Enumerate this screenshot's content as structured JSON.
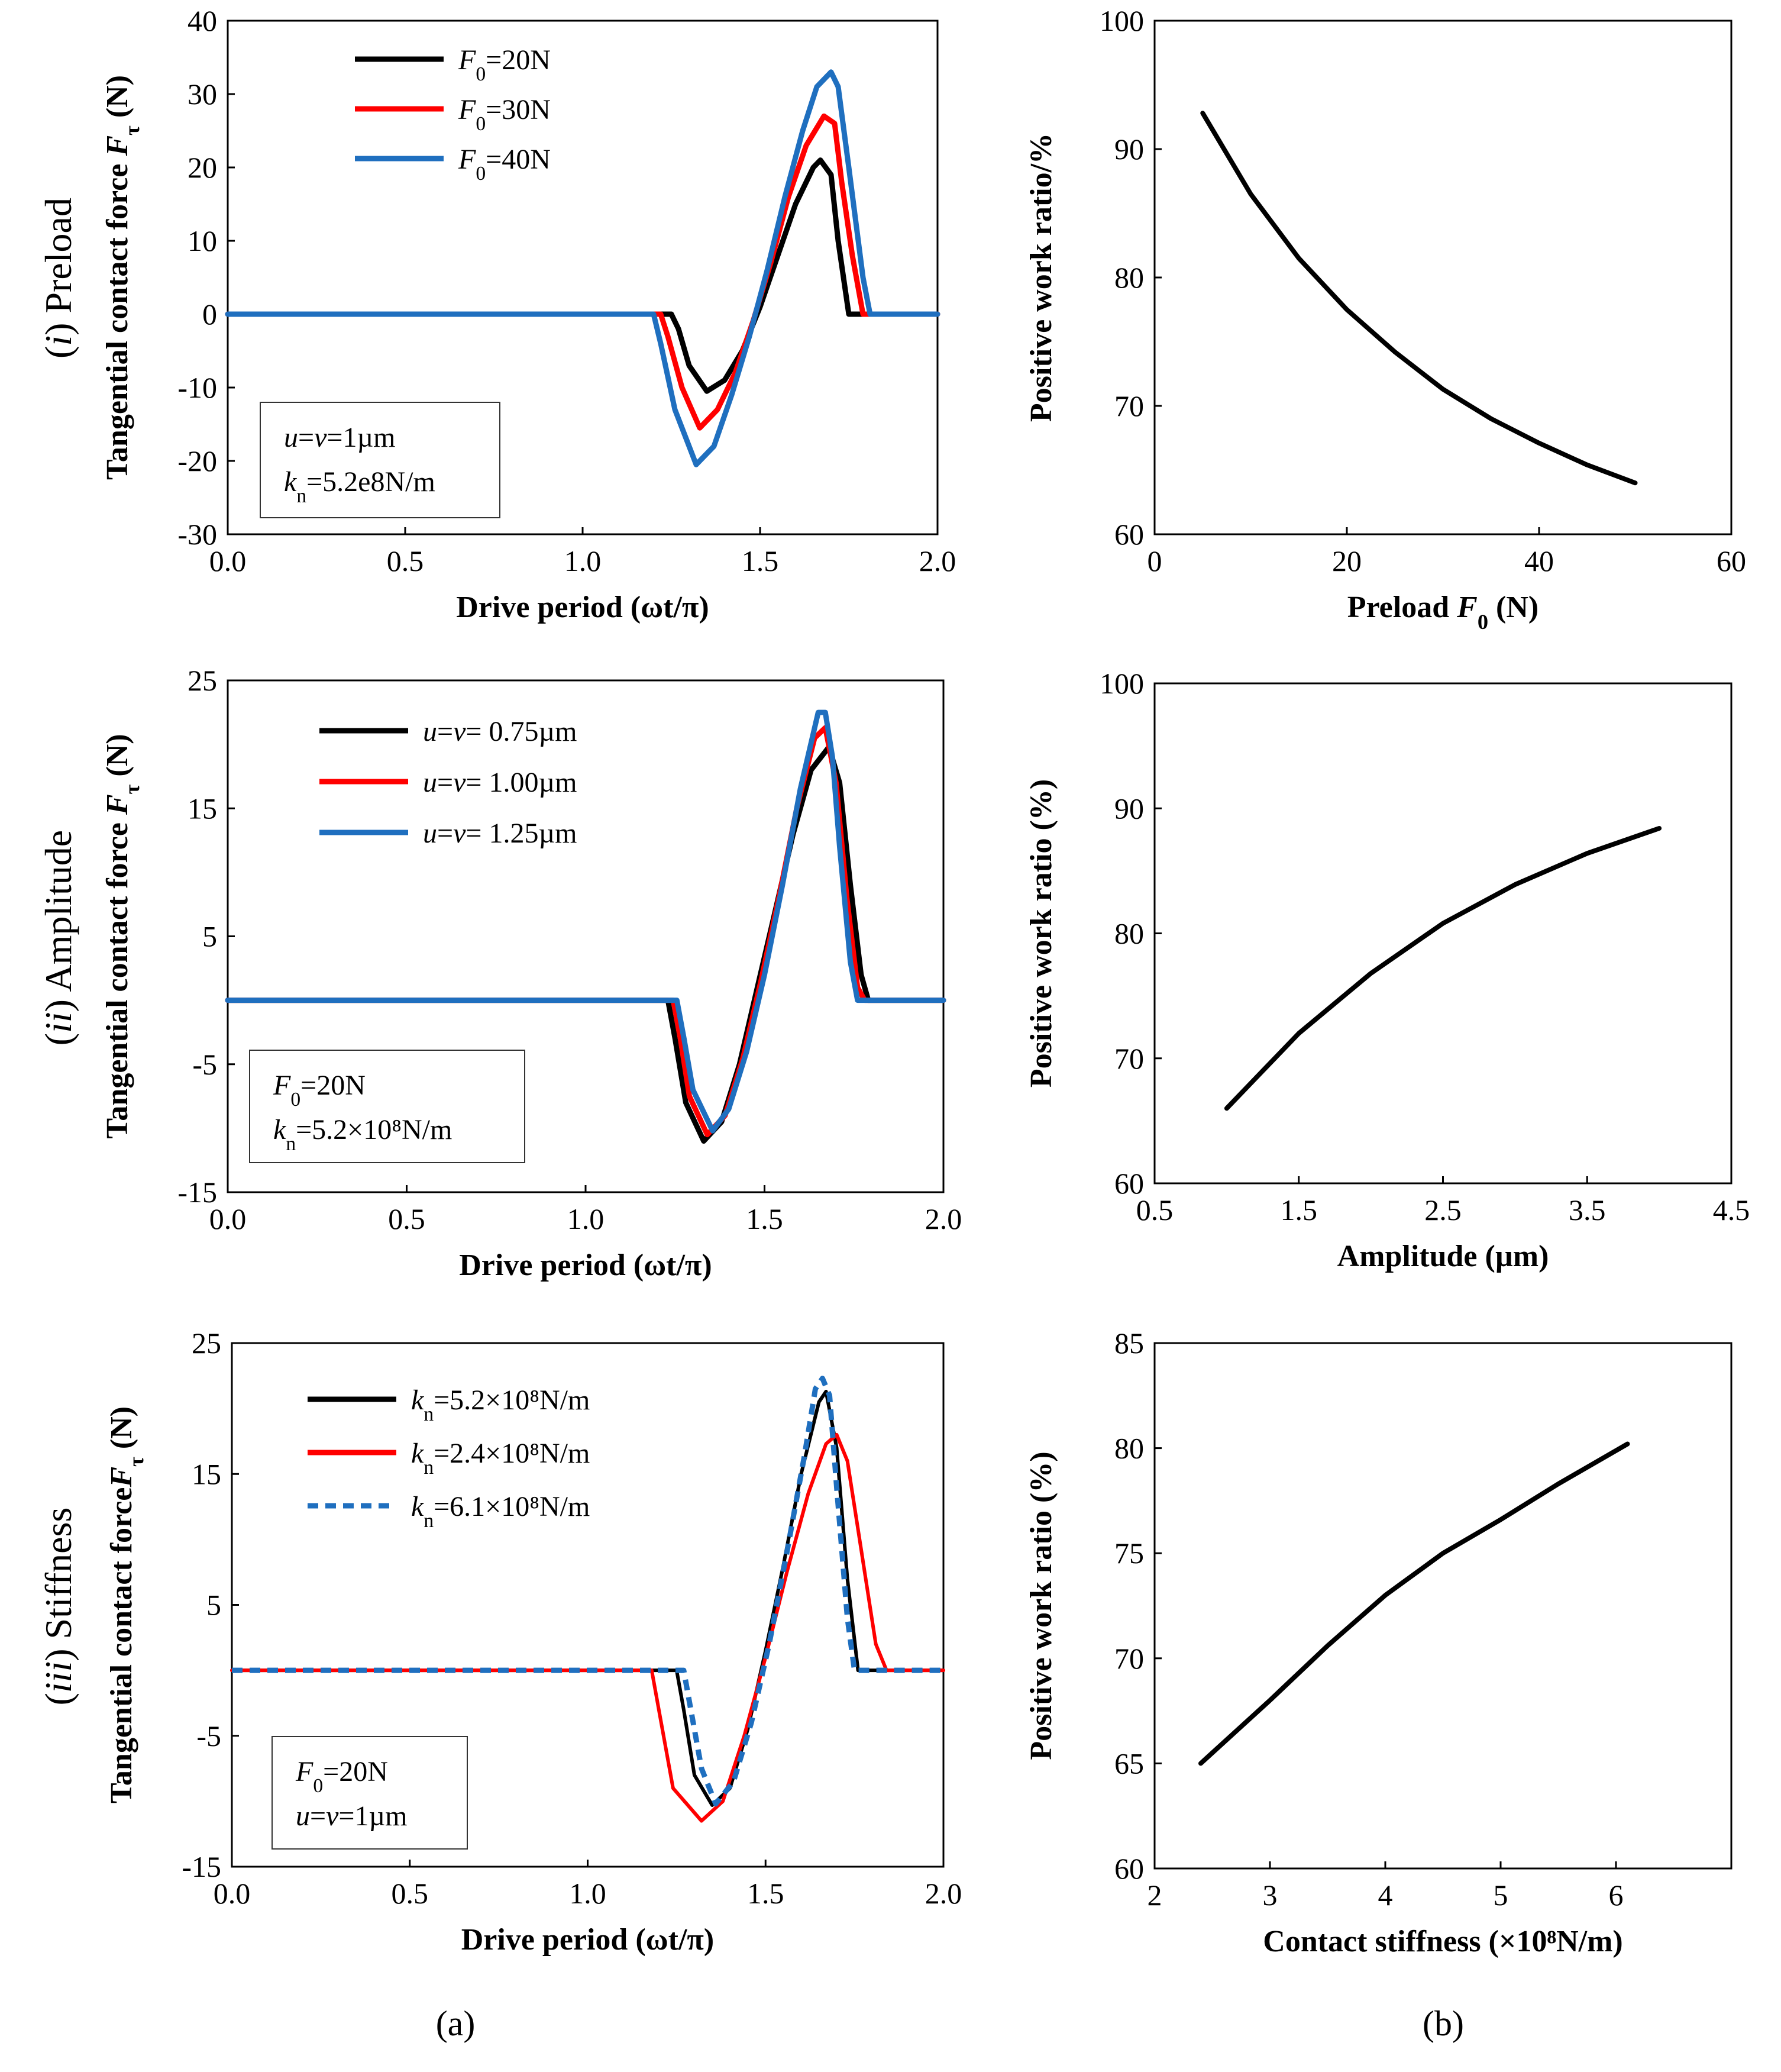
{
  "panel_labels": [
    "(a)",
    "(b)"
  ],
  "row_labels": [
    "(i) Preload",
    "(ii) Amplitude",
    "(iii) Stiffness"
  ],
  "chart_data": [
    {
      "id": "a1",
      "type": "line",
      "xlabel": "Drive period (ωt/π)",
      "ylabel": "Tangential contact force Fτ (N)",
      "row_label": "(i) Preload",
      "xlim": [
        0,
        2
      ],
      "ylim": [
        -30,
        40
      ],
      "xticks": [
        "0.0",
        "0.5",
        "1.0",
        "1.5",
        "2.0"
      ],
      "yticks": [
        "-30",
        "-20",
        "-10",
        "0",
        "10",
        "20",
        "30",
        "40"
      ],
      "legend_position": "top-left",
      "info_box": [
        "u=v=1µm",
        "kn=5.2e8N/m"
      ],
      "series": [
        {
          "name": "F0=20N",
          "color": "#000000",
          "dash": false,
          "x": [
            0,
            1.25,
            1.27,
            1.3,
            1.35,
            1.4,
            1.45,
            1.5,
            1.55,
            1.6,
            1.65,
            1.67,
            1.7,
            1.72,
            1.75,
            1.77,
            2.0
          ],
          "y": [
            0,
            0,
            -2,
            -7,
            -10.5,
            -9,
            -5,
            1,
            8,
            15,
            20,
            21,
            19,
            10,
            0,
            0,
            0
          ]
        },
        {
          "name": "F0=30N",
          "color": "#ff0000",
          "dash": false,
          "x": [
            0,
            1.22,
            1.24,
            1.28,
            1.33,
            1.38,
            1.43,
            1.48,
            1.53,
            1.58,
            1.63,
            1.68,
            1.71,
            1.73,
            1.76,
            1.79,
            2.0
          ],
          "y": [
            0,
            0,
            -3,
            -10,
            -15.5,
            -13,
            -8,
            -1,
            7,
            16,
            23,
            27,
            26,
            18,
            8,
            0,
            0
          ]
        },
        {
          "name": "F0=40N",
          "color": "#1f6fbf",
          "dash": false,
          "x": [
            0,
            1.2,
            1.22,
            1.26,
            1.32,
            1.37,
            1.42,
            1.47,
            1.52,
            1.57,
            1.62,
            1.66,
            1.7,
            1.72,
            1.75,
            1.79,
            1.81,
            2.0
          ],
          "y": [
            0,
            0,
            -4,
            -13,
            -20.5,
            -18,
            -11,
            -3,
            6,
            16,
            25,
            31,
            33,
            31,
            20,
            5,
            0,
            0
          ]
        }
      ]
    },
    {
      "id": "b1",
      "type": "line",
      "xlabel": "Preload F0 (N)",
      "ylabel": "Positive work ratio/%",
      "xlim": [
        0,
        60
      ],
      "ylim": [
        60,
        100
      ],
      "xticks": [
        "0",
        "20",
        "40",
        "60"
      ],
      "yticks": [
        "60",
        "70",
        "80",
        "90",
        "100"
      ],
      "series": [
        {
          "name": "Positive work ratio",
          "color": "#000000",
          "dash": false,
          "x": [
            5,
            10,
            15,
            20,
            25,
            30,
            35,
            40,
            45,
            50
          ],
          "y": [
            92.8,
            86.5,
            81.5,
            77.5,
            74.2,
            71.3,
            69.0,
            67.1,
            65.4,
            64.0
          ]
        }
      ]
    },
    {
      "id": "a2",
      "type": "line",
      "xlabel": "Drive period (ωt/π)",
      "ylabel": "Tangential contact force Fτ (N)",
      "row_label": "(ii) Amplitude",
      "xlim": [
        0,
        2
      ],
      "ylim": [
        -15,
        25
      ],
      "xticks": [
        "0.0",
        "0.5",
        "1.0",
        "1.5",
        "2.0"
      ],
      "yticks": [
        "-15",
        "-5",
        "5",
        "15",
        "25"
      ],
      "legend_position": "top-left",
      "info_box": [
        "F0=20N",
        "kn=5.2×10⁸N/m"
      ],
      "series": [
        {
          "name": "u=v= 0.75µm",
          "color": "#000000",
          "dash": false,
          "x": [
            0,
            1.23,
            1.25,
            1.28,
            1.33,
            1.38,
            1.43,
            1.48,
            1.53,
            1.58,
            1.63,
            1.68,
            1.71,
            1.74,
            1.77,
            1.79,
            2.0
          ],
          "y": [
            0,
            0,
            -3,
            -8,
            -11,
            -9.5,
            -5,
            1,
            7,
            13,
            18,
            19.8,
            17,
            9,
            2,
            0,
            0
          ]
        },
        {
          "name": "u=v= 1.00µm",
          "color": "#ff0000",
          "dash": false,
          "x": [
            0,
            1.245,
            1.265,
            1.29,
            1.34,
            1.39,
            1.44,
            1.49,
            1.54,
            1.59,
            1.64,
            1.67,
            1.7,
            1.73,
            1.76,
            1.78,
            2.0
          ],
          "y": [
            0,
            0,
            -3,
            -7.5,
            -10.5,
            -9,
            -4.5,
            1.5,
            8,
            15,
            20.5,
            21.3,
            17,
            8,
            1,
            0,
            0
          ]
        },
        {
          "name": "u=v= 1.25µm",
          "color": "#1f6fbf",
          "dash": false,
          "x": [
            0,
            1.255,
            1.275,
            1.3,
            1.355,
            1.4,
            1.45,
            1.5,
            1.55,
            1.6,
            1.65,
            1.67,
            1.69,
            1.71,
            1.74,
            1.76,
            2.0
          ],
          "y": [
            0,
            0,
            -3,
            -7,
            -10.2,
            -8.5,
            -4,
            2,
            9,
            16.5,
            22.5,
            22.5,
            19,
            12,
            3,
            0,
            0
          ]
        }
      ]
    },
    {
      "id": "b2",
      "type": "line",
      "xlabel": "Amplitude (µm)",
      "ylabel": "Positive work ratio (%)",
      "xlim": [
        0.5,
        4.5
      ],
      "ylim": [
        60,
        100
      ],
      "xticks": [
        "0.5",
        "1.5",
        "2.5",
        "3.5",
        "4.5"
      ],
      "yticks": [
        "60",
        "70",
        "80",
        "90",
        "100"
      ],
      "series": [
        {
          "name": "Positive work ratio",
          "color": "#000000",
          "dash": false,
          "x": [
            1.0,
            1.25,
            1.5,
            2.0,
            2.5,
            3.0,
            3.5,
            4.0
          ],
          "y": [
            66.0,
            69.0,
            72.0,
            76.8,
            80.8,
            83.9,
            86.4,
            88.4
          ]
        }
      ]
    },
    {
      "id": "a3",
      "type": "line",
      "xlabel": "Drive period (ωt/π)",
      "ylabel": "Tangential contact forceFτ (N)",
      "row_label": "(iii) Stiffness",
      "xlim": [
        0,
        2
      ],
      "ylim": [
        -15,
        25
      ],
      "xticks": [
        "0.0",
        "0.5",
        "1.0",
        "1.5",
        "2.0"
      ],
      "yticks": [
        "-15",
        "-5",
        "5",
        "15",
        "25"
      ],
      "legend_position": "top-left",
      "info_box": [
        "F0=20N",
        "u=v=1µm"
      ],
      "series": [
        {
          "name": "kn=5.2×10⁸N/m",
          "color": "#000000",
          "dash": false,
          "x": [
            0,
            1.25,
            1.27,
            1.3,
            1.35,
            1.4,
            1.45,
            1.5,
            1.55,
            1.6,
            1.65,
            1.67,
            1.7,
            1.73,
            1.76,
            2.0
          ],
          "y": [
            0,
            0,
            -3,
            -8,
            -10.3,
            -9,
            -4.5,
            1.5,
            8,
            15,
            20.5,
            21.3,
            17,
            7,
            0,
            0
          ]
        },
        {
          "name": "kn=2.4×10⁸N/m",
          "color": "#ff0000",
          "dash": false,
          "x": [
            0,
            1.18,
            1.2,
            1.24,
            1.32,
            1.38,
            1.44,
            1.5,
            1.56,
            1.62,
            1.67,
            1.7,
            1.73,
            1.77,
            1.81,
            1.84,
            2.0
          ],
          "y": [
            0,
            0,
            -3,
            -9,
            -11.5,
            -10,
            -5,
            1,
            7.5,
            13.5,
            17.3,
            18,
            16,
            9,
            2,
            0,
            0
          ]
        },
        {
          "name": "kn=6.1×10⁸N/m",
          "color": "#1f6fbf",
          "dash": true,
          "x": [
            0,
            1.27,
            1.29,
            1.32,
            1.36,
            1.41,
            1.46,
            1.51,
            1.56,
            1.61,
            1.64,
            1.66,
            1.68,
            1.7,
            1.73,
            1.75,
            2.0
          ],
          "y": [
            0,
            0,
            -3,
            -7.5,
            -10.2,
            -8.5,
            -4,
            2,
            9,
            16.5,
            21.5,
            22.3,
            21,
            14,
            4,
            0,
            0
          ]
        }
      ]
    },
    {
      "id": "b3",
      "type": "line",
      "xlabel": "Contact stiffness (×10⁸N/m)",
      "ylabel": "Positive work ratio (%)",
      "xlim": [
        2,
        7
      ],
      "ylim": [
        60,
        85
      ],
      "xticks": [
        "2",
        "3",
        "4",
        "5",
        "6"
      ],
      "yticks": [
        "60",
        "65",
        "70",
        "75",
        "80",
        "85"
      ],
      "series": [
        {
          "name": "Positive work ratio",
          "color": "#000000",
          "dash": false,
          "x": [
            2.4,
            3.0,
            3.5,
            4.0,
            4.5,
            5.0,
            5.5,
            6.1
          ],
          "y": [
            65.0,
            68.0,
            70.6,
            73.0,
            75.0,
            76.6,
            78.3,
            80.2
          ]
        }
      ]
    }
  ]
}
